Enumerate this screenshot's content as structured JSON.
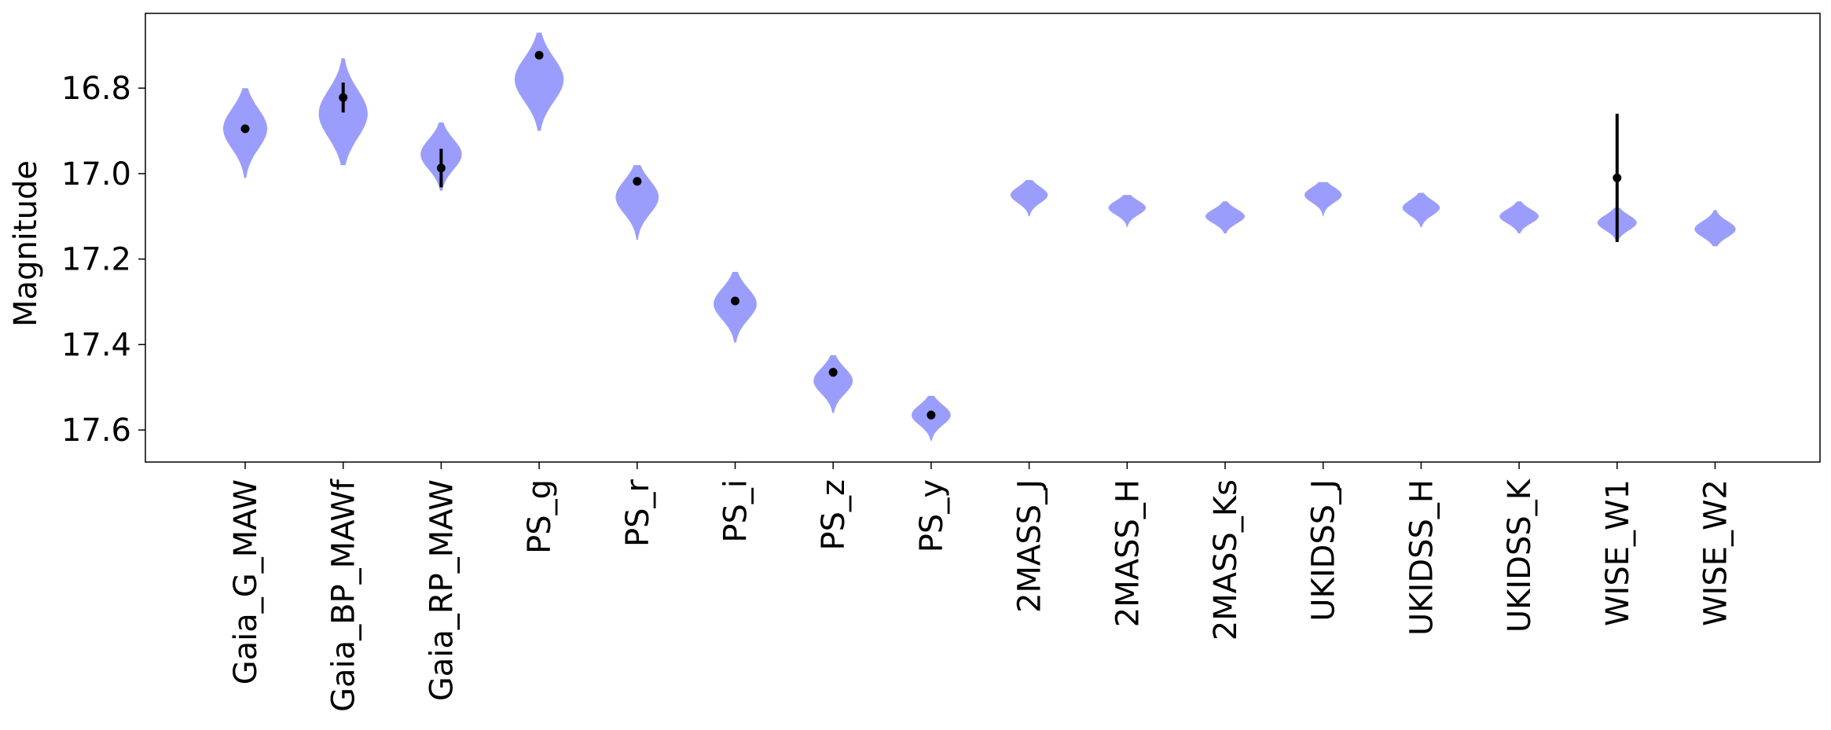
{
  "chart_data": {
    "type": "violin",
    "title": "",
    "xlabel": "",
    "ylabel": "Magnitude",
    "y_inverted": true,
    "ylim": [
      17.675,
      16.625
    ],
    "yticks": [
      16.8,
      17.0,
      17.2,
      17.4,
      17.6
    ],
    "ytick_labels": [
      "16.8",
      "17.0",
      "17.2",
      "17.4",
      "17.6"
    ],
    "grid": false,
    "violin_color": "#9b9dfd",
    "marker_color": "#000000",
    "categories": [
      "Gaia_G_MAW",
      "Gaia_BP_MAWf",
      "Gaia_RP_MAW",
      "PS_g",
      "PS_r",
      "PS_i",
      "PS_z",
      "PS_y",
      "2MASS_J",
      "2MASS_H",
      "2MASS_Ks",
      "UKIDSS_J",
      "UKIDSS_H",
      "UKIDSS_K",
      "WISE_W1",
      "WISE_W2"
    ],
    "violins": [
      {
        "center": 16.895,
        "min": 16.8,
        "max": 17.01,
        "width": 0.45
      },
      {
        "center": 16.86,
        "min": 16.73,
        "max": 16.98,
        "width": 0.5
      },
      {
        "center": 16.955,
        "min": 16.88,
        "max": 17.04,
        "width": 0.42
      },
      {
        "center": 16.78,
        "min": 16.67,
        "max": 16.9,
        "width": 0.5
      },
      {
        "center": 17.055,
        "min": 16.98,
        "max": 17.155,
        "width": 0.44
      },
      {
        "center": 17.305,
        "min": 17.23,
        "max": 17.395,
        "width": 0.44
      },
      {
        "center": 17.485,
        "min": 17.425,
        "max": 17.56,
        "width": 0.4
      },
      {
        "center": 17.565,
        "min": 17.52,
        "max": 17.625,
        "width": 0.4
      },
      {
        "center": 17.05,
        "min": 17.015,
        "max": 17.1,
        "width": 0.38
      },
      {
        "center": 17.08,
        "min": 17.05,
        "max": 17.125,
        "width": 0.38
      },
      {
        "center": 17.1,
        "min": 17.065,
        "max": 17.14,
        "width": 0.4
      },
      {
        "center": 17.05,
        "min": 17.02,
        "max": 17.1,
        "width": 0.38
      },
      {
        "center": 17.08,
        "min": 17.045,
        "max": 17.125,
        "width": 0.38
      },
      {
        "center": 17.1,
        "min": 17.065,
        "max": 17.14,
        "width": 0.4
      },
      {
        "center": 17.115,
        "min": 17.08,
        "max": 17.16,
        "width": 0.4
      },
      {
        "center": 17.13,
        "min": 17.085,
        "max": 17.17,
        "width": 0.42
      }
    ],
    "points": [
      {
        "y": 16.895,
        "err": 0.008
      },
      {
        "y": 16.822,
        "err": 0.035
      },
      {
        "y": 16.987,
        "err": 0.045
      },
      {
        "y": 16.723,
        "err": 0.008
      },
      {
        "y": 17.018,
        "err": 0.008
      },
      {
        "y": 17.298,
        "err": 0.008
      },
      {
        "y": 17.465,
        "err": 0.01
      },
      {
        "y": 17.565,
        "err": 0.01
      },
      null,
      null,
      null,
      null,
      null,
      null,
      {
        "y": 17.01,
        "err": 0.15
      },
      null
    ]
  }
}
